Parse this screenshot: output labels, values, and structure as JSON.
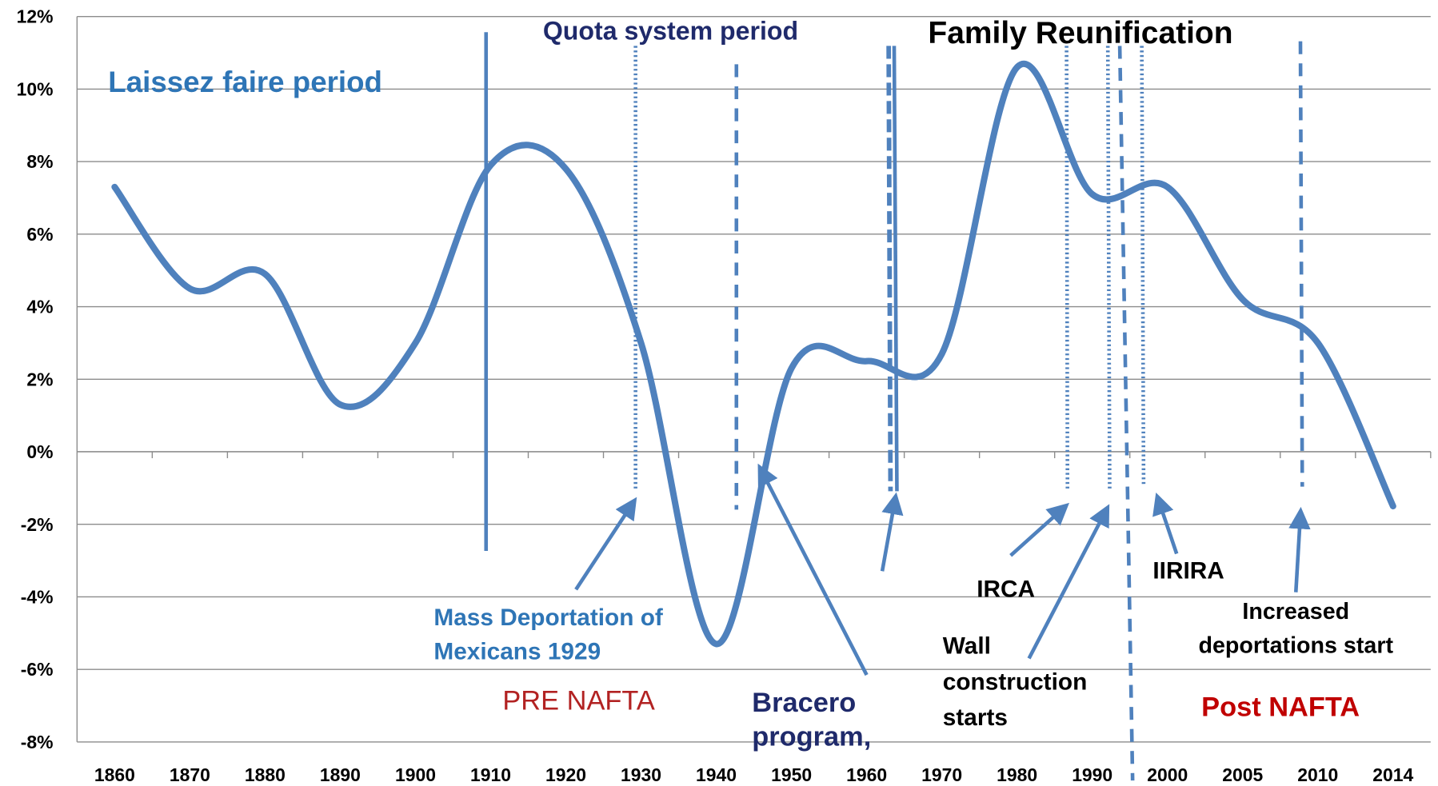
{
  "chart_data": {
    "type": "line",
    "categories": [
      "1860",
      "1870",
      "1880",
      "1890",
      "1900",
      "1910",
      "1920",
      "1930",
      "1940",
      "1950",
      "1960",
      "1970",
      "1980",
      "1990",
      "2000",
      "2005",
      "2010",
      "2014"
    ],
    "series": [
      {
        "color": "#4f81bd",
        "values": [
          7.3,
          4.5,
          4.9,
          1.3,
          3.0,
          7.9,
          7.8,
          3.0,
          -5.3,
          2.3,
          2.5,
          2.7,
          10.6,
          7.1,
          7.3,
          4.2,
          3.0,
          -1.5
        ]
      }
    ],
    "ylim": [
      -8,
      12
    ],
    "yticks": [
      {
        "value": -8,
        "label": "-8%"
      },
      {
        "value": -6,
        "label": "-6%"
      },
      {
        "value": -4,
        "label": "-4%"
      },
      {
        "value": -2,
        "label": "-2%"
      },
      {
        "value": 0,
        "label": "0%"
      },
      {
        "value": 2,
        "label": "2%"
      },
      {
        "value": 4,
        "label": "4%"
      },
      {
        "value": 6,
        "label": "6%"
      },
      {
        "value": 8,
        "label": "8%"
      },
      {
        "value": 10,
        "label": "10%"
      },
      {
        "value": 12,
        "label": "12%"
      }
    ],
    "grid": true,
    "annotations": [
      {
        "lines": [
          "Laissez faire period"
        ]
      },
      {
        "lines": [
          "Quota system period"
        ]
      },
      {
        "lines": [
          "Family Reunification"
        ]
      },
      {
        "lines": [
          "Mass Deportation of",
          "Mexicans 1929"
        ]
      },
      {
        "lines": [
          "PRE NAFTA"
        ]
      },
      {
        "lines": [
          "Bracero",
          "program,"
        ]
      },
      {
        "lines": [
          "IRCA"
        ]
      },
      {
        "lines": [
          "Wall",
          "construction",
          "starts"
        ]
      },
      {
        "lines": [
          "IIRIRA"
        ]
      },
      {
        "lines": [
          "Increased",
          "deportations start"
        ]
      },
      {
        "lines": [
          "Post NAFTA"
        ]
      }
    ]
  }
}
